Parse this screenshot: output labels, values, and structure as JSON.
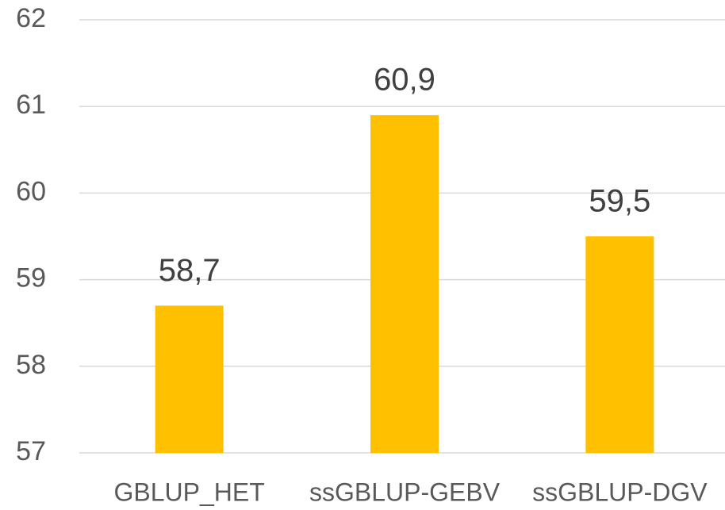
{
  "chart_data": {
    "type": "bar",
    "categories": [
      "GBLUP_HET",
      "ssGBLUP-GEBV",
      "ssGBLUP-DGV"
    ],
    "values": [
      58.7,
      60.9,
      59.5
    ],
    "value_labels": [
      "58,7",
      "60,9",
      "59,5"
    ],
    "color": "#ffc000",
    "ylim": [
      57,
      62
    ],
    "yticks": [
      57,
      58,
      59,
      60,
      61,
      62
    ],
    "grid": true
  }
}
